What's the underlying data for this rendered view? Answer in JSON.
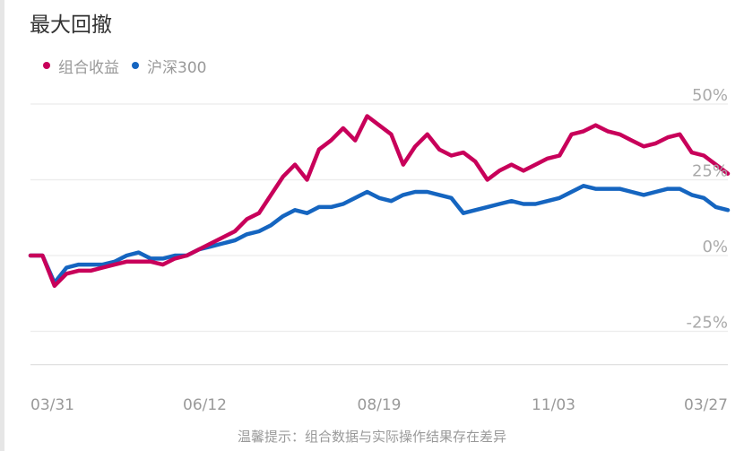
{
  "title": "最大回撤",
  "legend": [
    {
      "label": "组合收益",
      "color": "#c8005a"
    },
    {
      "label": "沪深300",
      "color": "#1565c0"
    }
  ],
  "footer": "温馨提示：组合数据与实际操作结果存在差异",
  "chart_data": {
    "type": "line",
    "x_labels": [
      "03/31",
      "06/12",
      "08/19",
      "11/03",
      "03/27"
    ],
    "y_ticks": [
      {
        "value": 50,
        "label": "50%"
      },
      {
        "value": 25,
        "label": "25%"
      },
      {
        "value": 0,
        "label": "0%"
      },
      {
        "value": -25,
        "label": "-25%"
      }
    ],
    "ylim": [
      -36,
      50
    ],
    "grid": true,
    "legend_position": "top-left",
    "series": [
      {
        "name": "组合收益",
        "color": "#c8005a",
        "values": [
          0,
          0,
          -10,
          -6,
          -5,
          -5,
          -4,
          -3,
          -2,
          -2,
          -2,
          -3,
          -1,
          0,
          2,
          4,
          6,
          8,
          12,
          14,
          20,
          26,
          30,
          25,
          35,
          38,
          42,
          38,
          46,
          43,
          40,
          30,
          36,
          40,
          35,
          33,
          34,
          31,
          25,
          28,
          30,
          28,
          30,
          32,
          33,
          40,
          41,
          43,
          41,
          40,
          38,
          36,
          37,
          39,
          40,
          34,
          33,
          30,
          27
        ]
      },
      {
        "name": "沪深300",
        "color": "#1565c0",
        "values": [
          0,
          0,
          -9,
          -4,
          -3,
          -3,
          -3,
          -2,
          0,
          1,
          -1,
          -1,
          0,
          0,
          2,
          3,
          4,
          5,
          7,
          8,
          10,
          13,
          15,
          14,
          16,
          16,
          17,
          19,
          21,
          19,
          18,
          20,
          21,
          21,
          20,
          19,
          14,
          15,
          16,
          17,
          18,
          17,
          17,
          18,
          19,
          21,
          23,
          22,
          22,
          22,
          21,
          20,
          21,
          22,
          22,
          20,
          19,
          16,
          15
        ]
      }
    ]
  }
}
